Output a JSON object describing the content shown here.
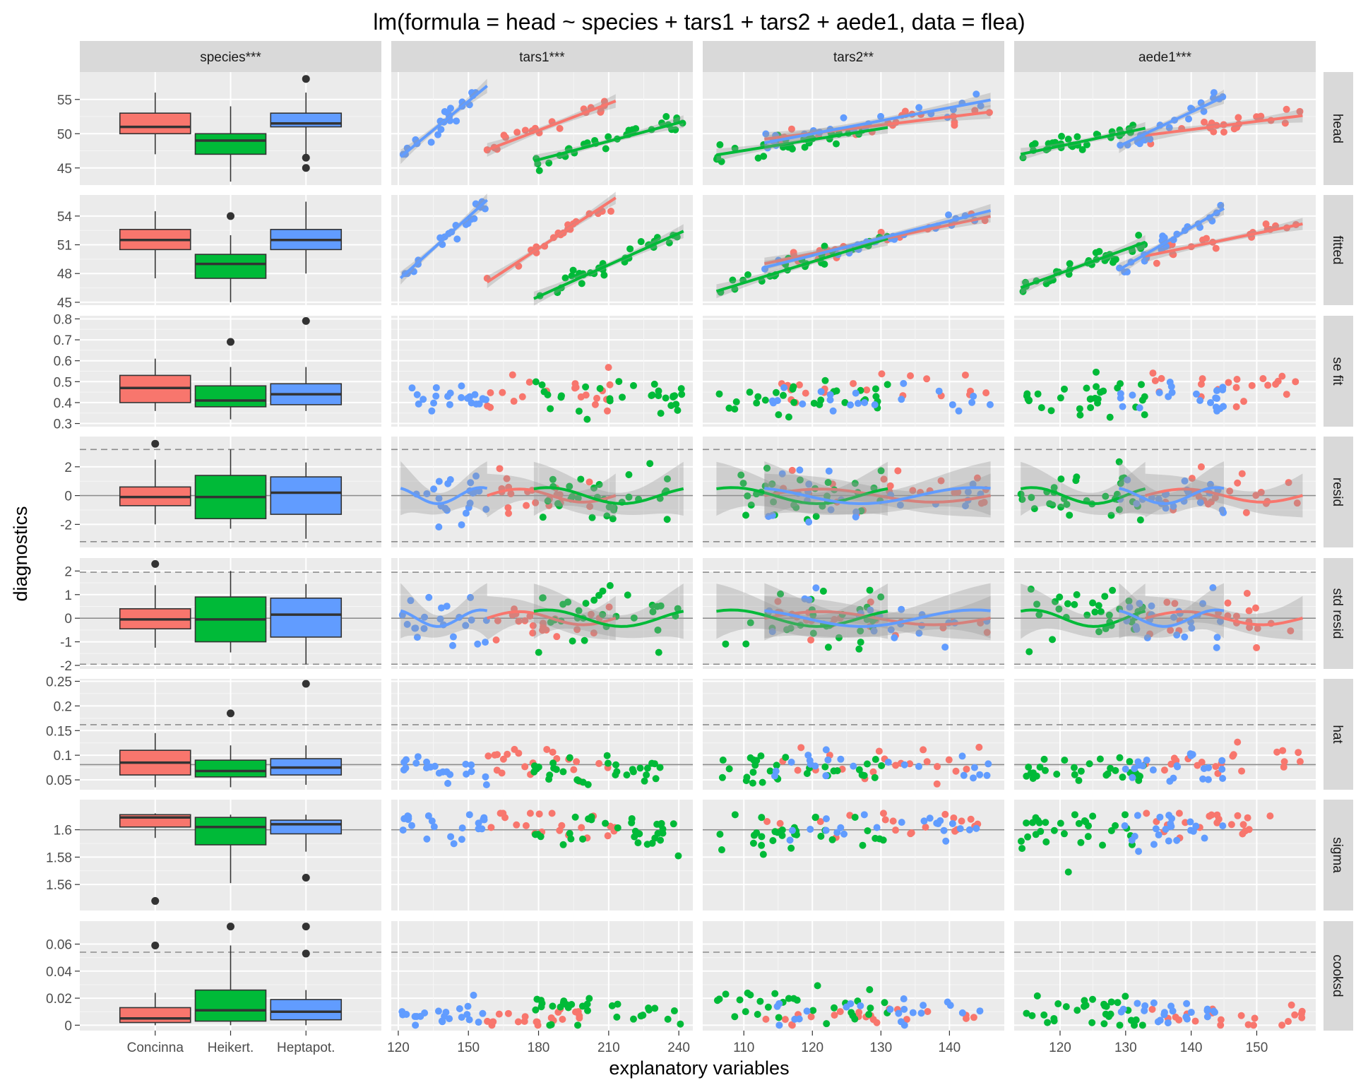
{
  "chart_data": {
    "type": "scatter",
    "title": "lm(formula = head ~ species + tars1 + tars2 + aede1, data = flea)",
    "xlabel": "explanatory variables",
    "ylabel": "diagnostics",
    "legend": "none",
    "grid": true,
    "species_colors": {
      "Concinna": "#F8766D",
      "Heikert.": "#00BA38",
      "Heptapot.": "#619CFF"
    },
    "columns": [
      {
        "key": "species",
        "label": "species***",
        "kind": "categorical",
        "categories": [
          "Concinna",
          "Heikert.",
          "Heptapot."
        ]
      },
      {
        "key": "tars1",
        "label": "tars1***",
        "kind": "numeric",
        "xlim": [
          117,
          246
        ],
        "ticks": [
          120,
          150,
          180,
          210,
          240
        ],
        "ranges": {
          "Concinna": [
            158,
            213
          ],
          "Heikert.": [
            178,
            242
          ],
          "Heptapot.": [
            121,
            158
          ]
        }
      },
      {
        "key": "tars2",
        "label": "tars2**",
        "kind": "numeric",
        "xlim": [
          104,
          148
        ],
        "ticks": [
          110,
          120,
          130,
          140
        ],
        "ranges": {
          "Concinna": [
            113,
            146
          ],
          "Heikert.": [
            106,
            131
          ],
          "Heptapot.": [
            113,
            146
          ]
        }
      },
      {
        "key": "aede1",
        "label": "aede1***",
        "kind": "numeric",
        "xlim": [
          113,
          159
        ],
        "ticks": [
          120,
          130,
          140,
          150
        ],
        "ranges": {
          "Concinna": [
            133,
            157
          ],
          "Heikert.": [
            114,
            133
          ],
          "Heptapot.": [
            129,
            145
          ]
        }
      }
    ],
    "rows": [
      {
        "key": "head",
        "label": "head",
        "ylim": [
          42.5,
          59
        ],
        "ticks": [
          45,
          50,
          55
        ],
        "dashed": [],
        "solid": [],
        "smooth": "lm",
        "boxes": {
          "Concinna": [
            47,
            50,
            51,
            53,
            56
          ],
          "Heikert.": [
            43,
            47,
            49,
            50,
            54
          ],
          "Heptapot.": [
            47,
            51,
            51.5,
            53,
            56
          ]
        },
        "outliers": {
          "Concinna": [],
          "Heikert.": [],
          "Heptapot.": [
            58,
            46.5,
            45
          ]
        },
        "centers": {
          "Concinna": 51.2,
          "Heikert.": 48.9,
          "Heptapot.": 51.8
        },
        "spreads": {
          "Concinna": 2.2,
          "Heikert.": 2.0,
          "Heptapot.": 2.3
        },
        "slopes": {
          "tars1": {
            "Concinna": 0.13,
            "Heikert.": 0.09,
            "Heptapot.": 0.28
          },
          "tars2": {
            "Concinna": 0.12,
            "Heikert.": 0.16,
            "Heptapot.": 0.19
          },
          "aede1": {
            "Concinna": 0.12,
            "Heikert.": 0.2,
            "Heptapot.": 0.45
          }
        }
      },
      {
        "key": "fitted",
        "label": "fitted",
        "ylim": [
          44.7,
          56.2
        ],
        "ticks": [
          45,
          48,
          51,
          54
        ],
        "dashed": [],
        "solid": [],
        "smooth": "lm",
        "boxes": {
          "Concinna": [
            47.5,
            50.5,
            51.5,
            52.6,
            54.5
          ],
          "Heikert.": [
            45,
            47.5,
            49,
            50,
            52
          ],
          "Heptapot.": [
            48,
            50.5,
            51.5,
            52.6,
            55.5
          ]
        },
        "outliers": {
          "Concinna": [],
          "Heikert.": [
            54
          ],
          "Heptapot.": []
        },
        "centers": {
          "Concinna": 51.5,
          "Heikert.": 48.9,
          "Heptapot.": 51.6
        },
        "spreads": {
          "Concinna": 1.4,
          "Heikert.": 1.6,
          "Heptapot.": 1.5
        },
        "slopes": {
          "tars1": {
            "Concinna": 0.16,
            "Heikert.": 0.11,
            "Heptapot.": 0.22
          },
          "tars2": {
            "Concinna": 0.15,
            "Heikert.": 0.22,
            "Heptapot.": 0.18
          },
          "aede1": {
            "Concinna": 0.14,
            "Heikert.": 0.25,
            "Heptapot.": 0.4
          }
        }
      },
      {
        "key": "se fit",
        "label": "se fit",
        "ylim": [
          0.285,
          0.815
        ],
        "ticks": [
          0.3,
          0.4,
          0.5,
          0.6,
          0.7,
          0.8
        ],
        "dashed": [],
        "solid": [],
        "smooth": "none",
        "boxes": {
          "Concinna": [
            0.36,
            0.4,
            0.47,
            0.53,
            0.61
          ],
          "Heikert.": [
            0.32,
            0.38,
            0.41,
            0.48,
            0.57
          ],
          "Heptapot.": [
            0.36,
            0.39,
            0.44,
            0.49,
            0.57
          ]
        },
        "outliers": {
          "Concinna": [],
          "Heikert.": [
            0.69
          ],
          "Heptapot.": [
            0.79
          ]
        },
        "centers": {
          "Concinna": 0.46,
          "Heikert.": 0.42,
          "Heptapot.": 0.43
        },
        "spreads": {
          "Concinna": 0.07,
          "Heikert.": 0.07,
          "Heptapot.": 0.06
        },
        "slopes": {
          "tars1": {
            "Concinna": 0,
            "Heikert.": 0,
            "Heptapot.": 0
          },
          "tars2": {
            "Concinna": 0,
            "Heikert.": 0,
            "Heptapot.": 0
          },
          "aede1": {
            "Concinna": 0,
            "Heikert.": 0,
            "Heptapot.": 0
          }
        }
      },
      {
        "key": "resid",
        "label": "resid",
        "ylim": [
          -3.6,
          4.1
        ],
        "ticks": [
          -2,
          0,
          2
        ],
        "dashed": [
          -3.2,
          3.2
        ],
        "solid": [
          0
        ],
        "smooth": "loess",
        "boxes": {
          "Concinna": [
            -2,
            -0.7,
            -0.1,
            0.6,
            2.5
          ],
          "Heikert.": [
            -2.3,
            -1.6,
            -0.1,
            1.4,
            3.2
          ],
          "Heptapot.": [
            -3,
            -1.3,
            0.2,
            1.3,
            2.3
          ]
        },
        "outliers": {
          "Concinna": [
            3.6
          ],
          "Heikert.": [],
          "Heptapot.": []
        },
        "centers": {
          "Concinna": 0,
          "Heikert.": 0,
          "Heptapot.": 0
        },
        "spreads": {
          "Concinna": 1.3,
          "Heikert.": 1.6,
          "Heptapot.": 1.6
        },
        "slopes": {
          "tars1": {
            "Concinna": 0,
            "Heikert.": 0,
            "Heptapot.": 0
          },
          "tars2": {
            "Concinna": 0,
            "Heikert.": 0,
            "Heptapot.": 0
          },
          "aede1": {
            "Concinna": 0,
            "Heikert.": 0,
            "Heptapot.": 0
          }
        }
      },
      {
        "key": "std resid",
        "label": "std resid",
        "ylim": [
          -2.15,
          2.55
        ],
        "ticks": [
          -2,
          -1,
          0,
          1,
          2
        ],
        "dashed": [
          -1.95,
          1.95
        ],
        "solid": [
          0
        ],
        "smooth": "loess",
        "boxes": {
          "Concinna": [
            -1.25,
            -0.45,
            -0.05,
            0.4,
            1.4
          ],
          "Heikert.": [
            -1.45,
            -1,
            -0.05,
            0.9,
            2
          ],
          "Heptapot.": [
            -1.95,
            -0.8,
            0.15,
            0.85,
            1.45
          ]
        },
        "outliers": {
          "Concinna": [
            2.3
          ],
          "Heikert.": [],
          "Heptapot.": []
        },
        "centers": {
          "Concinna": 0,
          "Heikert.": 0,
          "Heptapot.": 0
        },
        "spreads": {
          "Concinna": 0.8,
          "Heikert.": 1.0,
          "Heptapot.": 1.0
        },
        "slopes": {
          "tars1": {
            "Concinna": 0,
            "Heikert.": 0,
            "Heptapot.": 0
          },
          "tars2": {
            "Concinna": 0,
            "Heikert.": 0,
            "Heptapot.": 0
          },
          "aede1": {
            "Concinna": 0,
            "Heikert.": 0,
            "Heptapot.": 0
          }
        }
      },
      {
        "key": "hat",
        "label": "hat",
        "ylim": [
          0.03,
          0.255
        ],
        "ticks": [
          0.05,
          0.1,
          0.15,
          0.2,
          0.25
        ],
        "dashed": [
          0.162
        ],
        "solid": [
          0.081
        ],
        "smooth": "none",
        "boxes": {
          "Concinna": [
            0.035,
            0.06,
            0.085,
            0.11,
            0.145
          ],
          "Heikert.": [
            0.035,
            0.056,
            0.068,
            0.09,
            0.12
          ],
          "Heptapot.": [
            0.04,
            0.06,
            0.075,
            0.093,
            0.12
          ]
        },
        "outliers": {
          "Concinna": [],
          "Heikert.": [
            0.185
          ],
          "Heptapot.": [
            0.245
          ]
        },
        "centers": {
          "Concinna": 0.085,
          "Heikert.": 0.07,
          "Heptapot.": 0.075
        },
        "spreads": {
          "Concinna": 0.028,
          "Heikert.": 0.025,
          "Heptapot.": 0.022
        },
        "slopes": {
          "tars1": {
            "Concinna": 0,
            "Heikert.": 0,
            "Heptapot.": 0
          },
          "tars2": {
            "Concinna": 0,
            "Heikert.": 0,
            "Heptapot.": 0
          },
          "aede1": {
            "Concinna": 0,
            "Heikert.": 0,
            "Heptapot.": 0
          }
        }
      },
      {
        "key": "sigma",
        "label": "sigma",
        "ylim": [
          1.541,
          1.622
        ],
        "ticks": [
          1.56,
          1.58,
          1.6
        ],
        "dashed": [],
        "solid": [
          1.6
        ],
        "smooth": "none",
        "boxes": {
          "Concinna": [
            1.594,
            1.602,
            1.609,
            1.611,
            1.612
          ],
          "Heikert.": [
            1.561,
            1.589,
            1.602,
            1.609,
            1.611
          ],
          "Heptapot.": [
            1.584,
            1.597,
            1.604,
            1.607,
            1.611
          ]
        },
        "outliers": {
          "Concinna": [
            1.548
          ],
          "Heikert.": [],
          "Heptapot.": [
            1.565
          ]
        },
        "centers": {
          "Concinna": 1.605,
          "Heikert.": 1.598,
          "Heptapot.": 1.602
        },
        "spreads": {
          "Concinna": 0.01,
          "Heikert.": 0.014,
          "Heptapot.": 0.01
        },
        "slopes": {
          "tars1": {
            "Concinna": 0,
            "Heikert.": 0,
            "Heptapot.": 0
          },
          "tars2": {
            "Concinna": 0,
            "Heikert.": 0,
            "Heptapot.": 0
          },
          "aede1": {
            "Concinna": 0,
            "Heikert.": 0,
            "Heptapot.": 0
          }
        }
      },
      {
        "key": "cooksd",
        "label": "cooksd",
        "ylim": [
          -0.004,
          0.077
        ],
        "ticks": [
          0,
          0.02,
          0.04,
          0.06
        ],
        "dashed": [
          0.054
        ],
        "solid": [],
        "smooth": "none",
        "boxes": {
          "Concinna": [
            0,
            0.002,
            0.005,
            0.013,
            0.024
          ],
          "Heikert.": [
            0,
            0.003,
            0.011,
            0.026,
            0.059
          ],
          "Heptapot.": [
            0,
            0.004,
            0.01,
            0.019,
            0.026
          ]
        },
        "outliers": {
          "Concinna": [
            0.059
          ],
          "Heikert.": [
            0.073
          ],
          "Heptapot.": [
            0.073,
            0.053
          ]
        },
        "centers": {
          "Concinna": 0.006,
          "Heikert.": 0.012,
          "Heptapot.": 0.01
        },
        "spreads": {
          "Concinna": 0.006,
          "Heikert.": 0.012,
          "Heptapot.": 0.008
        },
        "slopes": {
          "tars1": {
            "Concinna": 0,
            "Heikert.": 0,
            "Heptapot.": 0
          },
          "tars2": {
            "Concinna": 0,
            "Heikert.": 0,
            "Heptapot.": 0
          },
          "aede1": {
            "Concinna": 0,
            "Heikert.": 0,
            "Heptapot.": 0
          }
        }
      }
    ]
  }
}
